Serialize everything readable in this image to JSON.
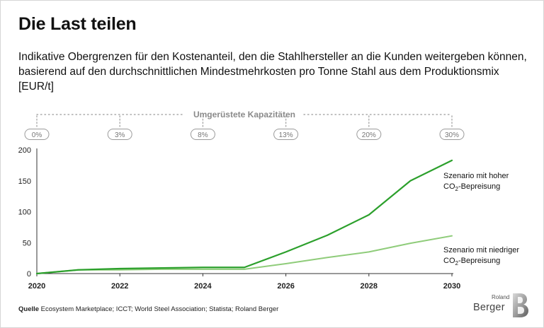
{
  "title": "Die Last teilen",
  "subtitle": "Indikative Obergrenzen für den Kostenanteil, den die Stahlhersteller an die Kunden weitergeben können, basierend auf den durchschnittlichen Mindestmehrkosten pro Tonne Stahl aus dem Produktionsmix [EUR/t]",
  "source": {
    "label": "Quelle",
    "text": " Ecosystem Marketplace; ICCT; World Steel Association; Statista; Roland Berger"
  },
  "logo": {
    "top": "Roland",
    "main": "Berger"
  },
  "capacity": {
    "label": "Umgerüstete Kapazitäten",
    "years": [
      2020,
      2022,
      2024,
      2026,
      2028,
      2030
    ],
    "values": [
      "0%",
      "3%",
      "8%",
      "13%",
      "20%",
      "30%"
    ]
  },
  "chart_data": {
    "type": "line",
    "xlim": [
      2020,
      2030
    ],
    "ylim": [
      0,
      200
    ],
    "x_ticks": [
      2020,
      2022,
      2024,
      2026,
      2028,
      2030
    ],
    "y_ticks": [
      0,
      50,
      100,
      150,
      200
    ],
    "series": [
      {
        "name": "Szenario mit hoher CO2-Bepreisung",
        "label_line1": "Szenario mit hoher",
        "label_line2_pre": "CO",
        "label_line2_sub": "2",
        "label_line2_post": "-Bepreisung",
        "color": "#2ca02c",
        "x": [
          2020,
          2021,
          2022,
          2023,
          2024,
          2025,
          2026,
          2027,
          2028,
          2029,
          2030
        ],
        "y": [
          0,
          6,
          8,
          9,
          10,
          10,
          35,
          62,
          95,
          150,
          183
        ]
      },
      {
        "name": "Szenario mit niedriger CO2-Bepreisung",
        "label_line1": "Szenario mit niedriger",
        "label_line2_pre": "CO",
        "label_line2_sub": "2",
        "label_line2_post": "-Bepreisung",
        "color": "#8fcc7a",
        "x": [
          2020,
          2021,
          2022,
          2023,
          2024,
          2025,
          2026,
          2027,
          2028,
          2029,
          2030
        ],
        "y": [
          0,
          6,
          6,
          7,
          7,
          7,
          16,
          26,
          35,
          49,
          61
        ]
      }
    ]
  }
}
